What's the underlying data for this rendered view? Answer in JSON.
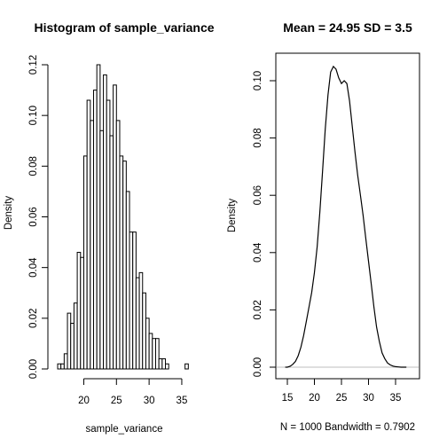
{
  "chart_data": [
    {
      "type": "bar",
      "title": "Histogram of sample_variance",
      "xlabel": "sample_variance",
      "ylabel": "Density",
      "bin_width": 0.5,
      "bin_start": 16,
      "values": [
        0.002,
        0.002,
        0.006,
        0.022,
        0.018,
        0.026,
        0.046,
        0.044,
        0.084,
        0.106,
        0.098,
        0.11,
        0.12,
        0.094,
        0.116,
        0.106,
        0.092,
        0.112,
        0.098,
        0.084,
        0.082,
        0.07,
        0.054,
        0.054,
        0.036,
        0.038,
        0.03,
        0.02,
        0.014,
        0.012,
        0.012,
        0.004,
        0.004,
        0.002,
        0.0,
        0.0,
        0.0,
        0.0,
        0.0,
        0.002
      ],
      "xlim": [
        16,
        36.5
      ],
      "ylim": [
        0,
        0.12
      ],
      "xticks": [
        "20",
        "25",
        "30",
        "35"
      ],
      "yticks": [
        "0.00",
        "0.02",
        "0.04",
        "0.06",
        "0.08",
        "0.10",
        "0.12"
      ],
      "grid": false
    },
    {
      "type": "line",
      "title": "Mean =  24.95 SD =  3.5",
      "xlabel": "N = 1000   Bandwidth = 0.7902",
      "ylabel": "Density",
      "x": [
        14.6,
        15.0,
        15.5,
        16.0,
        16.5,
        17.0,
        17.5,
        18.0,
        18.5,
        19.0,
        19.5,
        20.0,
        20.5,
        21.0,
        21.5,
        22.0,
        22.5,
        23.0,
        23.5,
        24.0,
        24.5,
        25.0,
        25.5,
        26.0,
        26.5,
        27.0,
        27.5,
        28.0,
        28.5,
        29.0,
        29.5,
        30.0,
        30.5,
        31.0,
        31.5,
        32.0,
        32.5,
        33.0,
        33.5,
        34.0,
        34.5,
        35.0,
        35.5,
        36.0,
        36.5,
        37.0
      ],
      "y": [
        0.0,
        0.0,
        0.0003,
        0.001,
        0.002,
        0.004,
        0.007,
        0.011,
        0.016,
        0.021,
        0.026,
        0.033,
        0.042,
        0.054,
        0.068,
        0.083,
        0.095,
        0.103,
        0.105,
        0.104,
        0.101,
        0.099,
        0.1,
        0.099,
        0.093,
        0.084,
        0.075,
        0.067,
        0.06,
        0.053,
        0.045,
        0.037,
        0.029,
        0.021,
        0.014,
        0.009,
        0.005,
        0.003,
        0.0015,
        0.0008,
        0.0004,
        0.0002,
        0.0001,
        0.0,
        0.0,
        0.0
      ],
      "xlim": [
        14.2,
        37.6
      ],
      "ylim": [
        -0.003,
        0.11
      ],
      "xticks": [
        "15",
        "20",
        "25",
        "30",
        "35"
      ],
      "yticks": [
        "0.00",
        "0.02",
        "0.04",
        "0.06",
        "0.08",
        "0.10"
      ],
      "zero_line_color": "#bebebe",
      "grid": false
    }
  ]
}
